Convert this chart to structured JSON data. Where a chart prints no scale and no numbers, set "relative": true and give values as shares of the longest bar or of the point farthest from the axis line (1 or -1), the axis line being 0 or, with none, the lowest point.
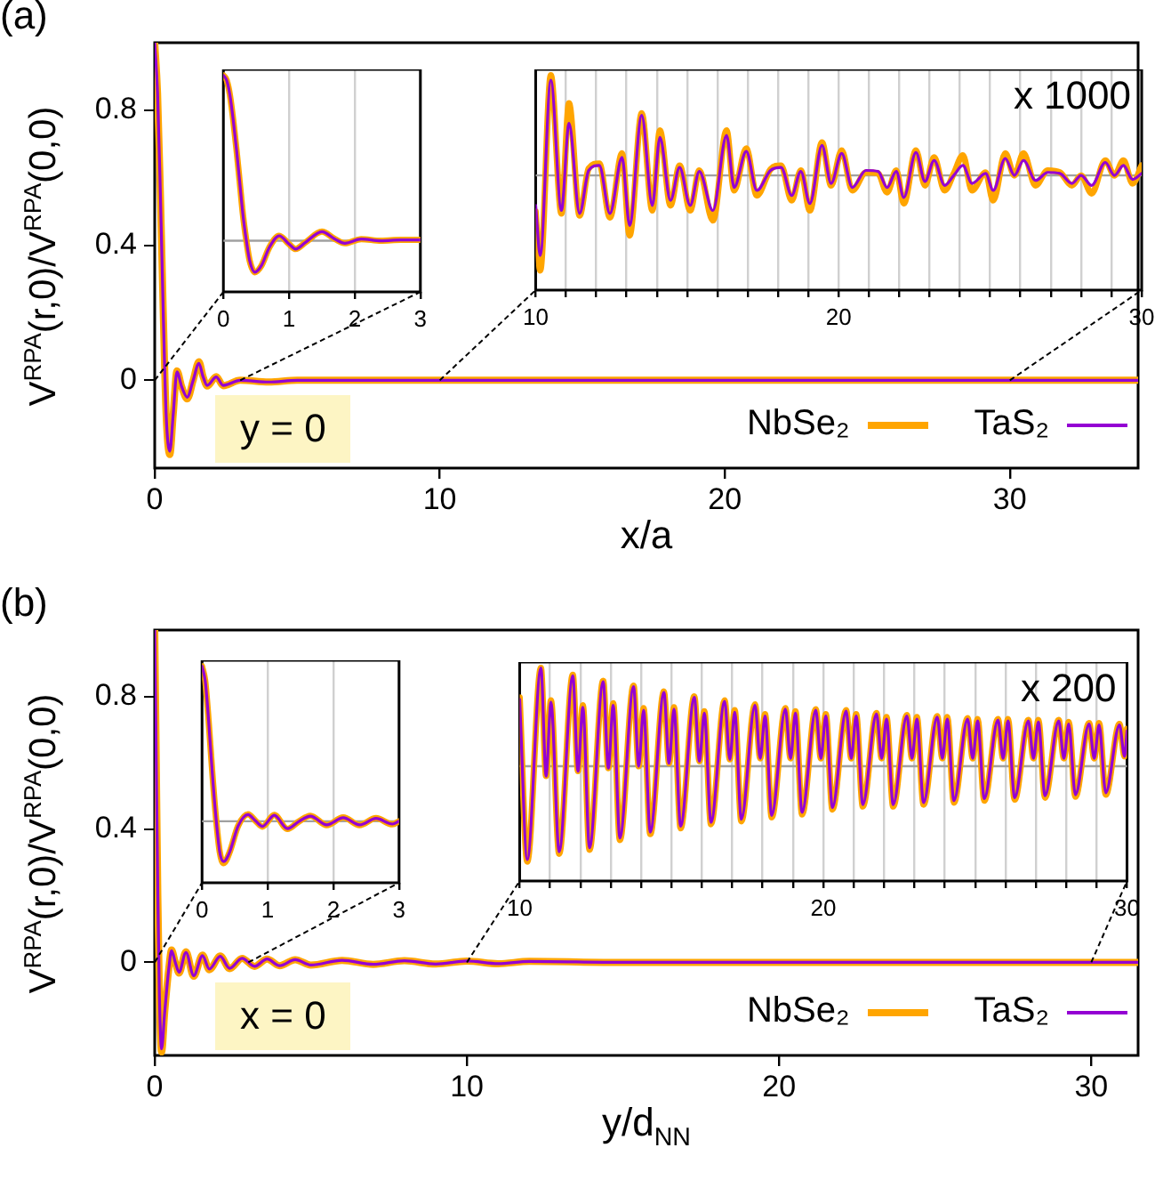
{
  "chart_data": [
    {
      "type": "line",
      "title": "(a)",
      "xlabel": "x/a",
      "ylabel": "V$^{RPA}$(r,0)/V$^{RPA}$(0,0)",
      "legend": "bottom right",
      "annotations": [
        "y = 0"
      ],
      "x": [
        0,
        0.1,
        0.2,
        0.3,
        0.4,
        0.53,
        0.65,
        0.78,
        0.95,
        1.14,
        1.35,
        1.55,
        1.7,
        1.84,
        2.16,
        2.4,
        3,
        4,
        5,
        6,
        10,
        20,
        30,
        34.5
      ],
      "series": [
        {
          "name": "NbSe₂",
          "color": "#ffa500",
          "values": [
            1.0,
            0.85,
            0.55,
            0.2,
            -0.1,
            -0.22,
            -0.1,
            0.028,
            -0.02,
            -0.055,
            0.0,
            0.055,
            0.01,
            -0.017,
            0.011,
            -0.016,
            0.0,
            -0.005,
            0.0,
            0.0,
            0,
            0,
            0,
            0
          ]
        },
        {
          "name": "TaS₂",
          "color": "#9400d3",
          "values": [
            1.0,
            0.85,
            0.55,
            0.2,
            -0.1,
            -0.21,
            -0.1,
            0.025,
            -0.02,
            -0.05,
            0.0,
            0.05,
            0.01,
            -0.015,
            0.01,
            -0.015,
            0.0,
            -0.005,
            0.0,
            0.0,
            0,
            0,
            0,
            0
          ]
        }
      ],
      "xlim": [
        0,
        34.5
      ],
      "xticks": [
        0,
        10,
        20,
        30
      ],
      "ylim": [
        -0.26,
        1.0
      ],
      "yticks": [
        0,
        0.4,
        0.8
      ]
    },
    {
      "type": "line",
      "relative": true,
      "tick_labels": "x",
      "grid": "x",
      "ref_lines": [
        {
          "axis": "y",
          "value": 0,
          "color": "#a0a0a0"
        }
      ],
      "x": [
        0,
        0.05,
        0.1,
        0.15,
        0.2,
        0.25,
        0.3,
        0.35,
        0.4,
        0.48,
        0.58,
        0.7,
        0.85,
        1.0,
        1.1,
        1.25,
        1.5,
        1.7,
        1.85,
        2.1,
        2.4,
        2.7,
        3.0
      ],
      "series": [
        {
          "color": "#ffa500",
          "values": [
            1.0,
            0.97,
            0.88,
            0.73,
            0.55,
            0.35,
            0.15,
            0.0,
            -0.12,
            -0.19,
            -0.15,
            -0.04,
            0.03,
            -0.02,
            -0.05,
            -0.01,
            0.055,
            0.01,
            -0.015,
            0.01,
            0.0,
            0.005,
            0.005
          ]
        },
        {
          "color": "#9400d3",
          "values": [
            1.0,
            0.97,
            0.88,
            0.73,
            0.55,
            0.35,
            0.15,
            0.0,
            -0.12,
            -0.19,
            -0.15,
            -0.04,
            0.03,
            -0.02,
            -0.05,
            -0.01,
            0.055,
            0.01,
            -0.015,
            0.01,
            0.0,
            0.005,
            0.005
          ]
        }
      ],
      "xlim": [
        0,
        3
      ],
      "xticks": [
        0,
        1,
        2,
        3
      ]
    },
    {
      "type": "line",
      "relative": true,
      "tick_labels": "x",
      "grid": "x",
      "annotations": [
        "x 1000"
      ],
      "ref_lines": [
        {
          "axis": "y",
          "value": 0,
          "color": "#a0a0a0"
        }
      ],
      "x": [
        10.0,
        10.15,
        10.5,
        10.85,
        11.1,
        11.45,
        11.75,
        12.1,
        12.45,
        12.85,
        13.1,
        13.5,
        13.85,
        14.1,
        14.45,
        14.75,
        15.1,
        15.4,
        15.85,
        16.3,
        16.55,
        16.95,
        17.3,
        17.75,
        18.1,
        18.45,
        18.75,
        19.05,
        19.45,
        19.75,
        20.1,
        20.45,
        20.9,
        21.3,
        21.6,
        21.9,
        22.15,
        22.55,
        22.85,
        23.15,
        23.5,
        23.8,
        24.1,
        24.4,
        24.85,
        25.1,
        25.5,
        25.8,
        26.1,
        26.5,
        26.9,
        27.3,
        27.7,
        28.0,
        28.35,
        28.8,
        29.1,
        29.4,
        29.7,
        30.0
      ],
      "series": [
        {
          "color": "#ffa500",
          "values": [
            -0.36,
            -0.95,
            1.0,
            -0.38,
            0.72,
            -0.4,
            0.07,
            0.12,
            -0.42,
            0.22,
            -0.6,
            0.62,
            -0.35,
            0.45,
            -0.3,
            0.1,
            -0.35,
            0.05,
            -0.45,
            0.45,
            -0.15,
            0.27,
            -0.2,
            0.06,
            0.1,
            -0.25,
            0.05,
            -0.35,
            0.33,
            -0.1,
            0.25,
            -0.15,
            0.03,
            0.02,
            -0.17,
            0.05,
            -0.28,
            0.25,
            -0.1,
            0.18,
            -0.15,
            0.02,
            0.2,
            -0.15,
            0.03,
            -0.25,
            0.22,
            0.0,
            0.22,
            -0.1,
            0.05,
            0.03,
            -0.1,
            0.0,
            -0.18,
            0.15,
            0.0,
            0.15,
            -0.08,
            0.1
          ]
        },
        {
          "color": "#9400d3",
          "values": [
            -0.3,
            -0.8,
            0.95,
            -0.35,
            0.52,
            -0.38,
            0.05,
            0.1,
            -0.38,
            0.18,
            -0.5,
            0.6,
            -0.3,
            0.38,
            -0.25,
            0.08,
            -0.3,
            0.04,
            -0.35,
            0.4,
            -0.12,
            0.24,
            -0.15,
            0.05,
            0.08,
            -0.2,
            0.04,
            -0.28,
            0.3,
            -0.08,
            0.22,
            -0.12,
            0.05,
            0.04,
            -0.12,
            0.04,
            -0.22,
            0.23,
            -0.06,
            0.15,
            -0.1,
            0.0,
            0.1,
            -0.08,
            0.02,
            -0.15,
            0.17,
            0.0,
            0.15,
            -0.05,
            0.03,
            0.02,
            -0.08,
            0.0,
            -0.1,
            0.13,
            0.0,
            0.1,
            -0.04,
            0.02
          ]
        }
      ],
      "xlim": [
        10,
        30
      ],
      "xticks": [
        10,
        {
          "value": 11,
          "label": null
        },
        {
          "value": 12,
          "label": null
        },
        {
          "value": 13,
          "label": null
        },
        {
          "value": 14,
          "label": null
        },
        {
          "value": 15,
          "label": null
        },
        {
          "value": 16,
          "label": null
        },
        {
          "value": 17,
          "label": null
        },
        {
          "value": 18,
          "label": null
        },
        {
          "value": 19,
          "label": null
        },
        20,
        {
          "value": 21,
          "label": null
        },
        {
          "value": 22,
          "label": null
        },
        {
          "value": 23,
          "label": null
        },
        {
          "value": 24,
          "label": null
        },
        {
          "value": 25,
          "label": null
        },
        {
          "value": 26,
          "label": null
        },
        {
          "value": 27,
          "label": null
        },
        {
          "value": 28,
          "label": null
        },
        {
          "value": 29,
          "label": null
        },
        30
      ]
    },
    {
      "type": "line",
      "title": "(b)",
      "xlabel": "y/d$_{NN}$",
      "ylabel": "V$^{RPA}$(r,0)/V$^{RPA}$(0,0)",
      "legend": "bottom right",
      "annotations": [
        "x = 0"
      ],
      "x": [
        0,
        0.05,
        0.1,
        0.15,
        0.22,
        0.32,
        0.45,
        0.54,
        0.66,
        0.78,
        1.0,
        1.25,
        1.53,
        1.75,
        2.1,
        2.4,
        2.8,
        3.2,
        3.6,
        4.0,
        4.5,
        5,
        6,
        7,
        8,
        9,
        10,
        11,
        12,
        15,
        20,
        25,
        31.5
      ],
      "series": [
        {
          "name": "NbSe₂",
          "color": "#ffa500",
          "values": [
            1.0,
            0.6,
            0.2,
            -0.1,
            -0.27,
            -0.15,
            -0.02,
            0.037,
            0.0,
            -0.032,
            0.032,
            -0.042,
            0.022,
            -0.022,
            0.019,
            -0.019,
            0.012,
            -0.012,
            0.01,
            -0.01,
            0.008,
            -0.008,
            0.006,
            -0.006,
            0.005,
            -0.005,
            0.004,
            -0.004,
            0.003,
            0,
            0,
            0,
            0
          ]
        },
        {
          "name": "TaS₂",
          "color": "#9400d3",
          "values": [
            1.0,
            0.6,
            0.2,
            -0.1,
            -0.26,
            -0.15,
            -0.02,
            0.035,
            0.0,
            -0.03,
            0.03,
            -0.04,
            0.02,
            -0.02,
            0.018,
            -0.018,
            0.012,
            -0.012,
            0.01,
            -0.01,
            0.008,
            -0.008,
            0.006,
            -0.006,
            0.005,
            -0.005,
            0.004,
            -0.004,
            0.003,
            0,
            0,
            0,
            0
          ]
        }
      ],
      "xlim": [
        0,
        31.5
      ],
      "xticks": [
        0,
        10,
        20,
        30
      ],
      "ylim": [
        -0.28,
        1.0
      ],
      "yticks": [
        0,
        0.4,
        0.8
      ]
    },
    {
      "type": "line",
      "relative": true,
      "tick_labels": "x",
      "grid": "x",
      "ref_lines": [
        {
          "axis": "y",
          "value": 0,
          "color": "#a0a0a0"
        }
      ],
      "x": [
        0,
        0.05,
        0.1,
        0.15,
        0.2,
        0.27,
        0.33,
        0.42,
        0.55,
        0.7,
        0.82,
        0.92,
        1.1,
        1.3,
        1.48,
        1.65,
        1.9,
        2.15,
        2.4,
        2.65,
        2.9,
        3.0
      ],
      "series": [
        {
          "color": "#ffa500",
          "values": [
            1.0,
            0.9,
            0.65,
            0.35,
            0.08,
            -0.2,
            -0.27,
            -0.2,
            -0.03,
            0.045,
            0.0,
            -0.035,
            0.04,
            -0.05,
            0.0,
            0.035,
            -0.025,
            0.025,
            -0.025,
            0.02,
            -0.02,
            0.0
          ]
        },
        {
          "color": "#9400d3",
          "values": [
            1.0,
            0.9,
            0.65,
            0.35,
            0.08,
            -0.2,
            -0.26,
            -0.2,
            -0.03,
            0.043,
            0.0,
            -0.033,
            0.038,
            -0.048,
            0.0,
            0.033,
            -0.023,
            0.023,
            -0.023,
            0.018,
            -0.018,
            0.0
          ]
        }
      ],
      "xlim": [
        0,
        3
      ],
      "xticks": [
        0,
        1,
        2,
        3
      ]
    },
    {
      "type": "line",
      "relative": true,
      "tick_labels": "x",
      "grid": "x",
      "annotations": [
        "x 200"
      ],
      "ref_lines": [
        {
          "axis": "y",
          "value": 0,
          "color": "#a0a0a0"
        }
      ],
      "x": [
        10,
        10.25,
        10.7,
        10.87,
        11.03,
        11.3,
        11.75,
        11.92,
        12.08,
        12.3,
        12.75,
        12.92,
        13.08,
        13.3,
        13.75,
        13.92,
        14.08,
        14.3,
        14.75,
        14.92,
        15.08,
        15.3,
        15.75,
        15.92,
        16.08,
        16.3,
        16.75,
        16.92,
        17.08,
        17.3,
        17.75,
        17.92,
        18.08,
        18.3,
        18.75,
        18.92,
        19.08,
        19.3,
        19.75,
        19.92,
        20.08,
        20.3,
        20.75,
        20.92,
        21.08,
        21.3,
        21.75,
        21.92,
        22.08,
        22.3,
        22.75,
        22.92,
        23.08,
        23.3,
        23.75,
        23.92,
        24.08,
        24.3,
        24.75,
        24.92,
        25.08,
        25.3,
        25.75,
        25.92,
        26.08,
        26.3,
        26.75,
        26.92,
        27.08,
        27.3,
        27.75,
        27.92,
        28.08,
        28.3,
        28.75,
        28.92,
        29.08,
        29.3,
        29.75,
        29.92,
        30.0
      ],
      "series": [
        {
          "color": "#ffa500",
          "values": [
            0.7,
            -0.97,
            1.0,
            -0.1,
            0.67,
            -0.89,
            0.93,
            -0.05,
            0.62,
            -0.85,
            0.87,
            -0.02,
            0.64,
            -0.75,
            0.82,
            0.0,
            0.59,
            -0.69,
            0.76,
            0.03,
            0.6,
            -0.63,
            0.71,
            0.05,
            0.56,
            -0.59,
            0.67,
            0.07,
            0.57,
            -0.56,
            0.63,
            0.08,
            0.53,
            -0.52,
            0.59,
            0.08,
            0.56,
            -0.49,
            0.58,
            0.08,
            0.53,
            -0.44,
            0.57,
            0.08,
            0.53,
            -0.41,
            0.54,
            0.08,
            0.5,
            -0.41,
            0.52,
            0.08,
            0.5,
            -0.39,
            0.51,
            0.08,
            0.5,
            -0.37,
            0.49,
            0.08,
            0.48,
            -0.35,
            0.48,
            0.08,
            0.48,
            -0.34,
            0.47,
            0.08,
            0.47,
            -0.32,
            0.47,
            0.08,
            0.45,
            -0.31,
            0.44,
            0.08,
            0.44,
            -0.29,
            0.43,
            0.1,
            0.38
          ]
        },
        {
          "color": "#9400d3",
          "values": [
            0.68,
            -0.95,
            1.0,
            -0.1,
            0.65,
            -0.87,
            0.92,
            -0.05,
            0.6,
            -0.83,
            0.86,
            -0.02,
            0.62,
            -0.73,
            0.81,
            0.0,
            0.57,
            -0.67,
            0.75,
            0.03,
            0.58,
            -0.61,
            0.7,
            0.05,
            0.54,
            -0.57,
            0.66,
            0.07,
            0.55,
            -0.54,
            0.62,
            0.08,
            0.51,
            -0.5,
            0.58,
            0.08,
            0.54,
            -0.47,
            0.57,
            0.08,
            0.51,
            -0.42,
            0.56,
            0.08,
            0.51,
            -0.39,
            0.53,
            0.08,
            0.48,
            -0.39,
            0.51,
            0.08,
            0.48,
            -0.37,
            0.5,
            0.08,
            0.48,
            -0.35,
            0.48,
            0.08,
            0.46,
            -0.33,
            0.47,
            0.08,
            0.46,
            -0.32,
            0.46,
            0.08,
            0.45,
            -0.3,
            0.46,
            0.08,
            0.43,
            -0.29,
            0.43,
            0.08,
            0.42,
            -0.27,
            0.42,
            0.1,
            0.36
          ]
        }
      ],
      "xlim": [
        10,
        30
      ],
      "xticks": [
        10,
        {
          "value": 11,
          "label": null
        },
        {
          "value": 12,
          "label": null
        },
        {
          "value": 13,
          "label": null
        },
        {
          "value": 14,
          "label": null
        },
        {
          "value": 15,
          "label": null
        },
        {
          "value": 16,
          "label": null
        },
        {
          "value": 17,
          "label": null
        },
        {
          "value": 18,
          "label": null
        },
        {
          "value": 19,
          "label": null
        },
        20,
        {
          "value": 21,
          "label": null
        },
        {
          "value": 22,
          "label": null
        },
        {
          "value": 23,
          "label": null
        },
        {
          "value": 24,
          "label": null
        },
        {
          "value": 25,
          "label": null
        },
        {
          "value": 26,
          "label": null
        },
        {
          "value": 27,
          "label": null
        },
        {
          "value": 28,
          "label": null
        },
        {
          "value": 29,
          "label": null
        },
        30
      ]
    }
  ]
}
